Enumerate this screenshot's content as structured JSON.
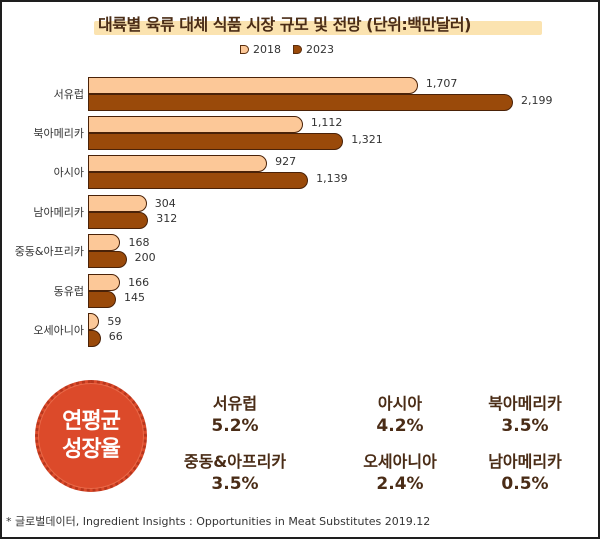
{
  "title": "대륙별 육류 대체 식품 시장 규모 및 전망 (단위:백만달러)",
  "legend": {
    "s2018": "2018",
    "s2023": "2023"
  },
  "colors": {
    "s2018": "#fcc898",
    "s2023": "#9a4a0a",
    "badge": "#dc4a2a",
    "title_highlight": "#fbe3b0"
  },
  "chart_data": {
    "type": "bar",
    "orientation": "horizontal",
    "title": "대륙별 육류 대체 식품 시장 규모 및 전망 (단위:백만달러)",
    "xlabel": "",
    "ylabel": "",
    "unit": "백만달러",
    "categories": [
      "서유럽",
      "북아메리카",
      "아시아",
      "남아메리카",
      "중동&아프리카",
      "동유럽",
      "오세아니아"
    ],
    "series": [
      {
        "name": "2018",
        "values": [
          1707,
          1112,
          927,
          304,
          168,
          166,
          59
        ]
      },
      {
        "name": "2023",
        "values": [
          2199,
          1321,
          1139,
          312,
          200,
          145,
          66
        ]
      }
    ],
    "labels": {
      "2018": [
        "1,707",
        "1,112",
        "927",
        "304",
        "168",
        "166",
        "59"
      ],
      "2023": [
        "2,199",
        "1,321",
        "1,139",
        "312",
        "200",
        "145",
        "66"
      ]
    },
    "legend_position": "top",
    "grid": false
  },
  "rows": [
    {
      "cat": "서유럽",
      "v18": "1,707",
      "v23": "2,199"
    },
    {
      "cat": "북아메리카",
      "v18": "1,112",
      "v23": "1,321"
    },
    {
      "cat": "아시아",
      "v18": "927",
      "v23": "1,139"
    },
    {
      "cat": "남아메리카",
      "v18": "304",
      "v23": "312"
    },
    {
      "cat": "중동&아프리카",
      "v18": "168",
      "v23": "200"
    },
    {
      "cat": "동유럽",
      "v18": "166",
      "v23": "145"
    },
    {
      "cat": "오세아니아",
      "v18": "59",
      "v23": "66"
    }
  ],
  "cagr": {
    "badge_line1": "연평균",
    "badge_line2": "성장율",
    "items": [
      {
        "region": "서유럽",
        "rate": "5.2%"
      },
      {
        "region": "아시아",
        "rate": "4.2%"
      },
      {
        "region": "북아메리카",
        "rate": "3.5%"
      },
      {
        "region": "중동&아프리카",
        "rate": "3.5%"
      },
      {
        "region": "오세아니아",
        "rate": "2.4%"
      },
      {
        "region": "남아메리카",
        "rate": "0.5%"
      }
    ]
  },
  "source": "* 글로벌데이터, Ingredient Insights : Opportunities in Meat Substitutes 2019.12"
}
